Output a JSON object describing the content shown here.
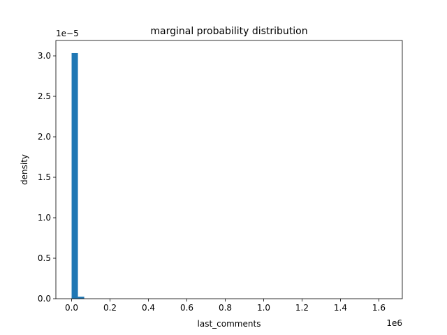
{
  "chart_data": {
    "type": "histogram",
    "title": "marginal probability distribution",
    "xlabel": "last_comments",
    "ylabel": "density",
    "x_offset_label": "1e6",
    "y_offset_label": "1e−5",
    "xlim": [
      -82000,
      1722000
    ],
    "ylim": [
      0,
      3.19e-05
    ],
    "bin_width": 32800,
    "bars": [
      {
        "x0": 0,
        "x1": 32800,
        "value": 3.035e-05
      },
      {
        "x0": 32800,
        "x1": 65600,
        "value": 2.5e-07
      }
    ],
    "x_ticks": [
      {
        "value": 0,
        "label": "0.0"
      },
      {
        "value": 200000,
        "label": "0.2"
      },
      {
        "value": 400000,
        "label": "0.4"
      },
      {
        "value": 600000,
        "label": "0.6"
      },
      {
        "value": 800000,
        "label": "0.8"
      },
      {
        "value": 1000000,
        "label": "1.0"
      },
      {
        "value": 1200000,
        "label": "1.2"
      },
      {
        "value": 1400000,
        "label": "1.4"
      },
      {
        "value": 1600000,
        "label": "1.6"
      }
    ],
    "y_ticks": [
      {
        "value": 0,
        "label": "0.0"
      },
      {
        "value": 5e-06,
        "label": "0.5"
      },
      {
        "value": 1e-05,
        "label": "1.0"
      },
      {
        "value": 1.5e-05,
        "label": "1.5"
      },
      {
        "value": 2e-05,
        "label": "2.0"
      },
      {
        "value": 2.5e-05,
        "label": "2.5"
      },
      {
        "value": 3e-05,
        "label": "3.0"
      }
    ],
    "bar_color": "#1f77b4",
    "grid": false,
    "legend": "none"
  }
}
